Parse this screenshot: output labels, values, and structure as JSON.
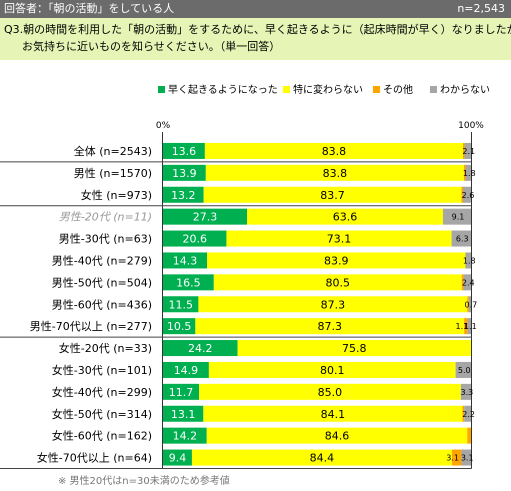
{
  "header": {
    "respondents": "回答者：「朝の活動」をしている人",
    "sample": "n=2,543"
  },
  "question": {
    "line1": "Q3.朝の時間を利用した「朝の活動」をするために、早く起きるように（起床時間が早く）なりましたか。",
    "line2": "お気持ちに近いものを知らせください。（単一回答）"
  },
  "footnote": "※ 男性20代はn=30未満のため参考値",
  "chart_data": {
    "type": "bar",
    "orientation": "horizontal",
    "stacked": true,
    "axis_labels": [
      "0%",
      "100%"
    ],
    "xlim": [
      0,
      100
    ],
    "legend_position": "top",
    "categories": [
      "全体 (n=2543)",
      "男性 (n=1570)",
      "女性 (n=973)",
      "男性-20代 (n=11)",
      "男性-30代 (n=63)",
      "男性-40代 (n=279)",
      "男性-50代 (n=504)",
      "男性-60代 (n=436)",
      "男性-70代以上 (n=277)",
      "女性-20代 (n=33)",
      "女性-30代 (n=101)",
      "女性-40代 (n=299)",
      "女性-50代 (n=314)",
      "女性-60代 (n=162)",
      "女性-70代以上 (n=64)"
    ],
    "group_breaks_after": [
      0,
      2,
      8
    ],
    "reference_category": "男性-20代 (n=11)",
    "series": [
      {
        "name": "早く起きるようになった",
        "color": "#00b050",
        "values": [
          13.6,
          13.9,
          13.2,
          27.3,
          20.6,
          14.3,
          16.5,
          11.5,
          10.5,
          24.2,
          14.9,
          11.7,
          13.1,
          14.2,
          9.4
        ],
        "labels": [
          "13.6",
          "13.9",
          "13.2",
          "27.3",
          "20.6",
          "14.3",
          "16.5",
          "11.5",
          "10.5",
          "24.2",
          "14.9",
          "11.7",
          "13.1",
          "14.2",
          "9.4"
        ]
      },
      {
        "name": "特に変わらない",
        "color": "#ffff00",
        "values": [
          83.8,
          83.8,
          83.7,
          63.6,
          73.1,
          83.9,
          80.5,
          87.3,
          87.3,
          75.8,
          80.1,
          85.0,
          84.1,
          84.6,
          84.4
        ],
        "labels": [
          "83.8",
          "83.8",
          "83.7",
          "63.6",
          "73.1",
          "83.9",
          "80.5",
          "87.3",
          "87.3",
          "75.8",
          "80.1",
          "85.0",
          "84.1",
          "84.6",
          "84.4"
        ]
      },
      {
        "name": "その他",
        "color": "#ffa500",
        "values": [
          0.5,
          0.5,
          0.5,
          0,
          0,
          0,
          0.6,
          0.5,
          1.1,
          0,
          0,
          0,
          0.6,
          1.2,
          3.1
        ],
        "labels": [
          "",
          "",
          "",
          "",
          "",
          "",
          "",
          "",
          "1.1",
          "",
          "",
          "",
          "",
          "",
          "3.1"
        ]
      },
      {
        "name": "わからない",
        "color": "#a6a6a6",
        "values": [
          2.1,
          1.8,
          2.6,
          9.1,
          6.3,
          1.8,
          2.4,
          0.7,
          1.1,
          0,
          5.0,
          3.3,
          2.2,
          0,
          3.1
        ],
        "labels": [
          "2.1",
          "1.8",
          "2.6",
          "9.1",
          "6.3",
          "1.8",
          "2.4",
          "0.7",
          "1.1",
          "",
          "5.0",
          "3.3",
          "2.2",
          "",
          "3.1"
        ]
      }
    ]
  }
}
